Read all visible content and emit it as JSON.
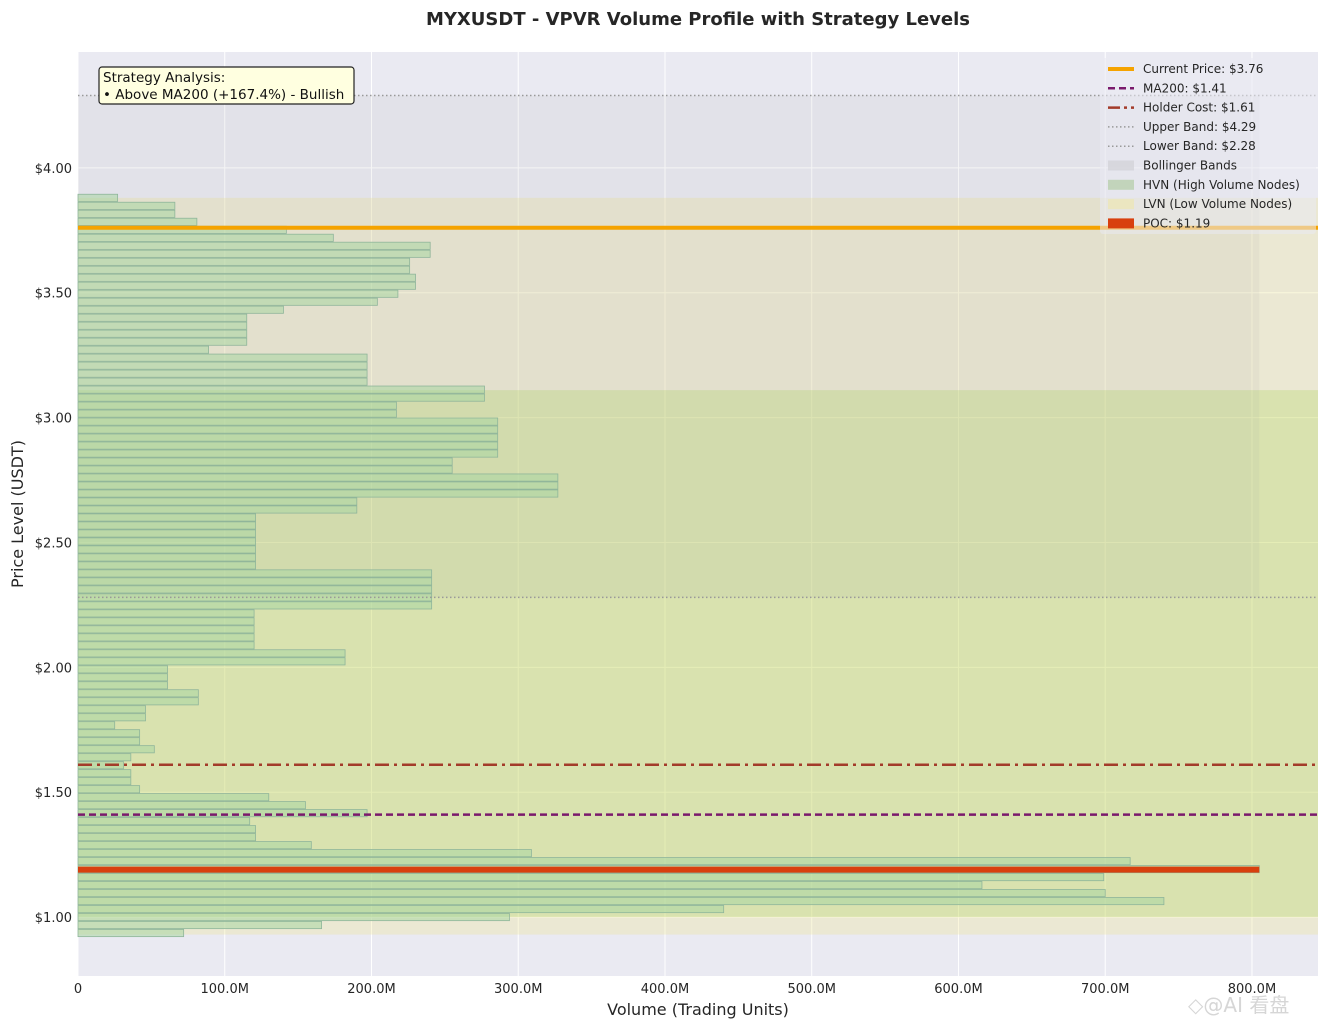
{
  "chart_data": {
    "type": "bar",
    "orientation": "horizontal",
    "title": "MYXUSDT - VPVR Volume Profile with Strategy Levels",
    "xlabel": "Volume (Trading Units)",
    "ylabel": "Price Level (USDT)",
    "xlim": [
      0,
      845
    ],
    "ylim": [
      0.764,
      4.464
    ],
    "x_unit": "M",
    "grid": true,
    "x_ticks": [
      0,
      100,
      200,
      300,
      400,
      500,
      600,
      700,
      800
    ],
    "x_tick_labels": [
      "0",
      "100.0M",
      "200.0M",
      "300.0M",
      "400.0M",
      "500.0M",
      "600.0M",
      "700.0M",
      "800.0M"
    ],
    "y_ticks": [
      1.0,
      1.5,
      2.0,
      2.5,
      3.0,
      3.5,
      4.0
    ],
    "y_tick_labels": [
      "$1.00",
      "$1.50",
      "$2.00",
      "$2.50",
      "$3.00",
      "$3.50",
      "$4.00"
    ],
    "bin_size": 0.032,
    "prices": [
      3.88,
      3.848,
      3.816,
      3.784,
      3.752,
      3.72,
      3.688,
      3.656,
      3.624,
      3.592,
      3.56,
      3.528,
      3.496,
      3.464,
      3.432,
      3.4,
      3.368,
      3.336,
      3.304,
      3.272,
      3.24,
      3.208,
      3.176,
      3.144,
      3.112,
      3.08,
      3.048,
      3.016,
      2.984,
      2.952,
      2.92,
      2.888,
      2.856,
      2.824,
      2.792,
      2.76,
      2.728,
      2.696,
      2.664,
      2.632,
      2.6,
      2.568,
      2.536,
      2.504,
      2.472,
      2.44,
      2.408,
      2.376,
      2.344,
      2.312,
      2.28,
      2.248,
      2.216,
      2.184,
      2.152,
      2.12,
      2.088,
      2.056,
      2.024,
      1.992,
      1.96,
      1.928,
      1.896,
      1.864,
      1.832,
      1.8,
      1.768,
      1.736,
      1.704,
      1.672,
      1.64,
      1.608,
      1.576,
      1.544,
      1.512,
      1.48,
      1.448,
      1.416,
      1.384,
      1.352,
      1.32,
      1.288,
      1.256,
      1.224,
      1.192,
      1.16,
      1.128,
      1.096,
      1.064,
      1.032,
      1.0,
      0.968,
      0.936
    ],
    "volumes": [
      27,
      66,
      66,
      81,
      142,
      174,
      240,
      240,
      226,
      226,
      230,
      230,
      218,
      204,
      140,
      115,
      115,
      115,
      115,
      89,
      197,
      197,
      197,
      197,
      277,
      277,
      217,
      217,
      286,
      286,
      286,
      286,
      286,
      255,
      255,
      327,
      327,
      327,
      190,
      190,
      121,
      121,
      121,
      121,
      121,
      121,
      121,
      241,
      241,
      241,
      241,
      241,
      120,
      120,
      120,
      120,
      120,
      182,
      182,
      61,
      61,
      61,
      82,
      82,
      46,
      46,
      25,
      42,
      42,
      52,
      36,
      31,
      36,
      36,
      42,
      130,
      155,
      197,
      117,
      121,
      121,
      159,
      309,
      717,
      805,
      699,
      616,
      700,
      740,
      440,
      294,
      166,
      72
    ],
    "levels": {
      "current_price": 3.76,
      "ma200": 1.41,
      "holder_cost": 1.61,
      "upper_band": 4.29,
      "lower_band": 2.28,
      "poc": 1.19,
      "hvn_range": [
        1.0,
        3.11
      ],
      "lvn_range": [
        0.93,
        3.88
      ]
    },
    "legend_position": "top-right",
    "legend": [
      {
        "label": "Current Price: $3.76",
        "style": "solid",
        "color": "#f5a300"
      },
      {
        "label": "MA200: $1.41",
        "style": "dashed",
        "color": "#7a1a6c"
      },
      {
        "label": "Holder Cost: $1.61",
        "style": "dashdot",
        "color": "#a33b2a"
      },
      {
        "label": "Upper Band: $4.29",
        "style": "dotted",
        "color": "#999999"
      },
      {
        "label": "Lower Band: $2.28",
        "style": "dotted",
        "color": "#999999"
      },
      {
        "label": "Bollinger Bands",
        "style": "patch",
        "color": "#d3d3d8"
      },
      {
        "label": "HVN (High Volume Nodes)",
        "style": "patch",
        "color": "#b9cfae"
      },
      {
        "label": "LVN (Low Volume Nodes)",
        "style": "patch",
        "color": "#ece6b8"
      },
      {
        "label": "POC: $1.19",
        "style": "patch",
        "color": "#d8400e"
      }
    ],
    "annotation": {
      "title": "Strategy Analysis:",
      "line": "• Above MA200 (+167.4%) - Bullish"
    }
  },
  "watermark": "◇@AI 看盘"
}
